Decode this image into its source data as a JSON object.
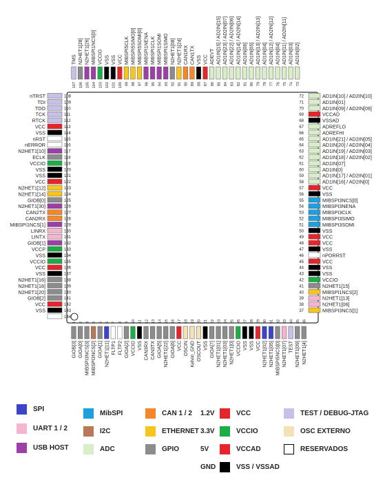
{
  "colors": {
    "spi": "#3c45c9",
    "uart": "#f5b5cf",
    "usb": "#9d3fa8",
    "mibspi": "#1ea0e0",
    "i2c": "#b87a56",
    "adc": "#d8edc8",
    "can": "#f5862a",
    "ethernet": "#f7c51e",
    "gpio": "#8c8c8c",
    "vcc": "#e8242b",
    "vccio": "#1bae47",
    "vccad": "#e8242b",
    "gnd": "#000000",
    "test": "#c8c0e8",
    "osc": "#f2e2b6",
    "reserved": "#ffffff"
  },
  "legend": [
    {
      "type": "spi",
      "label": "SPI"
    },
    {
      "type": "uart",
      "label": "UART 1 / 2"
    },
    {
      "type": "usb",
      "label": "USB HOST"
    },
    {
      "type": "mibspi",
      "label": "MibSPI"
    },
    {
      "type": "i2c",
      "label": "I2C"
    },
    {
      "type": "adc",
      "label": "ADC"
    },
    {
      "type": "can",
      "label": "CAN 1 / 2"
    },
    {
      "type": "ethernet",
      "label": "ETHERNET"
    },
    {
      "type": "gpio",
      "label": "GPIO"
    },
    {
      "type": "vcc",
      "label": "VCC",
      "voltage": "1.2V"
    },
    {
      "type": "vccio",
      "label": "VCCIO",
      "voltage": "3.3V"
    },
    {
      "type": "vccad",
      "label": "VCCAD",
      "voltage": "5V"
    },
    {
      "type": "gnd",
      "label": "VSS / VSSAD",
      "voltage": "GND"
    },
    {
      "type": "test",
      "label": "TEST / DEBUG-JTAG"
    },
    {
      "type": "osc",
      "label": "OSC EXTERNO"
    },
    {
      "type": "reserved",
      "label": "RESERVADOS"
    }
  ],
  "pins": {
    "left": [
      {
        "n": 108,
        "name": "nTRST",
        "type": "test"
      },
      {
        "n": 109,
        "name": "TDI",
        "type": "test"
      },
      {
        "n": 110,
        "name": "TDO",
        "type": "test"
      },
      {
        "n": 111,
        "name": "TCK",
        "type": "test"
      },
      {
        "n": 112,
        "name": "RTCK",
        "type": "test"
      },
      {
        "n": 113,
        "name": "VCC",
        "type": "vcc"
      },
      {
        "n": 114,
        "name": "VSS",
        "type": "gnd"
      },
      {
        "n": 115,
        "name": "nRST",
        "type": "reserved"
      },
      {
        "n": 116,
        "name": "nERROR",
        "type": "reserved"
      },
      {
        "n": 117,
        "name": "N2HET1[10]",
        "type": "usb"
      },
      {
        "n": 118,
        "name": "ECLK",
        "type": "gpio"
      },
      {
        "n": 119,
        "name": "VCCIO",
        "type": "vccio"
      },
      {
        "n": 120,
        "name": "VSS",
        "type": "gnd"
      },
      {
        "n": 121,
        "name": "VSS",
        "type": "gnd"
      },
      {
        "n": 122,
        "name": "VCC",
        "type": "vcc"
      },
      {
        "n": 123,
        "name": "N2HET1[12]",
        "type": "ethernet"
      },
      {
        "n": 124,
        "name": "N2HET1[14]",
        "type": "ethernet"
      },
      {
        "n": 125,
        "name": "GIOB[0]",
        "type": "gpio"
      },
      {
        "n": 126,
        "name": "N2HET1[30]",
        "type": "usb"
      },
      {
        "n": 127,
        "name": "CAN2TX",
        "type": "can"
      },
      {
        "n": 128,
        "name": "CAN2RX",
        "type": "can"
      },
      {
        "n": 129,
        "name": "MIBSPI1NCS[1]",
        "type": "usb"
      },
      {
        "n": 130,
        "name": "LINRX",
        "type": "uart"
      },
      {
        "n": 131,
        "name": "LINTX",
        "type": "uart"
      },
      {
        "n": 132,
        "name": "GIOB[1]",
        "type": "usb"
      },
      {
        "n": 133,
        "name": "VCCP",
        "type": "vccio"
      },
      {
        "n": 134,
        "name": "VSS",
        "type": "gnd"
      },
      {
        "n": 135,
        "name": "VCCIO",
        "type": "vccio"
      },
      {
        "n": 136,
        "name": "VCC",
        "type": "vcc"
      },
      {
        "n": 137,
        "name": "VSS",
        "type": "gnd"
      },
      {
        "n": 138,
        "name": "N2HET1[16]",
        "type": "gpio"
      },
      {
        "n": 139,
        "name": "N2HET1[18]",
        "type": "gpio"
      },
      {
        "n": 140,
        "name": "N2HET1[20]",
        "type": "gpio"
      },
      {
        "n": 141,
        "name": "GIOB[2]",
        "type": "gpio"
      },
      {
        "n": 142,
        "name": "VCC",
        "type": "vcc"
      },
      {
        "n": 143,
        "name": "VSS",
        "type": "gnd"
      },
      {
        "n": 144,
        "name": "",
        "type": "reserved"
      }
    ],
    "right": [
      {
        "n": 72,
        "name": "AD1IN[10] / AD2IN[10]",
        "type": "adc"
      },
      {
        "n": 71,
        "name": "AD1IN[01]",
        "type": "adc"
      },
      {
        "n": 70,
        "name": "AD1IN[09] / AD2IN[09]",
        "type": "adc"
      },
      {
        "n": 69,
        "name": "VCCAD",
        "type": "vccad"
      },
      {
        "n": 68,
        "name": "VSSAD",
        "type": "gnd"
      },
      {
        "n": 67,
        "name": "ADREFLO",
        "type": "adc"
      },
      {
        "n": 66,
        "name": "ADREFHI",
        "type": "adc"
      },
      {
        "n": 65,
        "name": "AD1IN[21] / AD2IN[05]",
        "type": "adc"
      },
      {
        "n": 64,
        "name": "AD1IN[20] / AD2IN[04]",
        "type": "adc"
      },
      {
        "n": 63,
        "name": "AD1IN[19] / AD2IN[03]",
        "type": "adc"
      },
      {
        "n": 62,
        "name": "AD1IN[18] / AD2IN[02]",
        "type": "adc"
      },
      {
        "n": 61,
        "name": "AD1IN[07]",
        "type": "adc"
      },
      {
        "n": 60,
        "name": "AD1IN[0]",
        "type": "adc"
      },
      {
        "n": 59,
        "name": "AD1IN[17] / AD2IN[01]",
        "type": "adc"
      },
      {
        "n": 58,
        "name": "AD1IN[16] / AD2IN[0]",
        "type": "adc"
      },
      {
        "n": 57,
        "name": "VCC",
        "type": "vcc"
      },
      {
        "n": 56,
        "name": "VSS",
        "type": "gnd"
      },
      {
        "n": 55,
        "name": "MIBSPI3NCS[0]",
        "type": "mibspi"
      },
      {
        "n": 54,
        "name": "MIBSPI3NENA",
        "type": "mibspi"
      },
      {
        "n": 53,
        "name": "MIBSPI3CLK",
        "type": "mibspi"
      },
      {
        "n": 52,
        "name": "MIBSPI3SIMO",
        "type": "mibspi"
      },
      {
        "n": 51,
        "name": "MIBSPI3SOMI",
        "type": "mibspi"
      },
      {
        "n": 50,
        "name": "VSS",
        "type": "gnd"
      },
      {
        "n": 49,
        "name": "VCC",
        "type": "vcc"
      },
      {
        "n": 48,
        "name": "VCC",
        "type": "vcc"
      },
      {
        "n": 47,
        "name": "VSS",
        "type": "gnd"
      },
      {
        "n": 46,
        "name": "nPORRST",
        "type": "reserved"
      },
      {
        "n": 45,
        "name": "VCC",
        "type": "vcc"
      },
      {
        "n": 44,
        "name": "VSS",
        "type": "gnd"
      },
      {
        "n": 43,
        "name": "VSS",
        "type": "gnd"
      },
      {
        "n": 42,
        "name": "VCCIO",
        "type": "vccio"
      },
      {
        "n": 41,
        "name": "N2HET1[15]",
        "type": "gpio"
      },
      {
        "n": 40,
        "name": "MIBSPI1NCS[2]",
        "type": "ethernet"
      },
      {
        "n": 39,
        "name": "N2HET1[13]",
        "type": "uart"
      },
      {
        "n": 38,
        "name": "N2HET1[06]",
        "type": "uart"
      },
      {
        "n": 37,
        "name": "MIBSPI3NCS[1]",
        "type": "ethernet"
      }
    ],
    "top": [
      {
        "n": 107,
        "name": "TMS",
        "type": "test"
      },
      {
        "n": 106,
        "name": "N2HET1[28]",
        "type": "gpio"
      },
      {
        "n": 105,
        "name": "N2HET1[26]",
        "type": "usb"
      },
      {
        "n": 104,
        "name": "MIBSPI1NCS[0]",
        "type": "usb"
      },
      {
        "n": 103,
        "name": "VCCIO",
        "type": "vccio"
      },
      {
        "n": 102,
        "name": "VSS",
        "type": "gnd"
      },
      {
        "n": 101,
        "name": "VSS",
        "type": "gnd"
      },
      {
        "n": 100,
        "name": "VCC",
        "type": "vcc"
      },
      {
        "n": 99,
        "name": "MIBSPI5CLK",
        "type": "ethernet"
      },
      {
        "n": 98,
        "name": "MIBSPI5SIMO[0]",
        "type": "ethernet"
      },
      {
        "n": 97,
        "name": "MIBSPI5SOMI[0]",
        "type": "ethernet"
      },
      {
        "n": 96,
        "name": "MIBSPI1NENA",
        "type": "usb"
      },
      {
        "n": 95,
        "name": "MIBSPI1CLK",
        "type": "usb"
      },
      {
        "n": 94,
        "name": "MIBSPI1SOMI",
        "type": "usb"
      },
      {
        "n": 93,
        "name": "MIBSPI1SIMO",
        "type": "usb"
      },
      {
        "n": 92,
        "name": "N2HET1[08]",
        "type": "gpio"
      },
      {
        "n": 91,
        "name": "N2HET1[24]",
        "type": "ethernet"
      },
      {
        "n": 90,
        "name": "CAN1RX",
        "type": "can"
      },
      {
        "n": 89,
        "name": "CAN1TX",
        "type": "can"
      },
      {
        "n": 88,
        "name": "VSS",
        "type": "gnd"
      },
      {
        "n": 87,
        "name": "VCC",
        "type": "vcc"
      },
      {
        "n": 86,
        "name": "ADEVT",
        "type": "adc"
      },
      {
        "n": 85,
        "name": "AD1IN[15] / AD2IN[15]",
        "type": "adc"
      },
      {
        "n": 84,
        "name": "AD1IN[23] / AD2IN[07]",
        "type": "adc"
      },
      {
        "n": 83,
        "name": "AD1IN[22] / AD2IN[06]",
        "type": "adc"
      },
      {
        "n": 82,
        "name": "AD1IN[14] / AD2IN[14]",
        "type": "adc"
      },
      {
        "n": 81,
        "name": "AD1IN[06]",
        "type": "adc"
      },
      {
        "n": 80,
        "name": "AD1IN[05]",
        "type": "adc"
      },
      {
        "n": 79,
        "name": "AD1IN[13] / AD2IN[13]",
        "type": "adc"
      },
      {
        "n": 78,
        "name": "AD1IN[04]",
        "type": "adc"
      },
      {
        "n": 77,
        "name": "AD1IN[12] / AD2IN[12]",
        "type": "adc"
      },
      {
        "n": 76,
        "name": "AD1IN[04]",
        "type": "adc"
      },
      {
        "n": 75,
        "name": "AD1IN[11] / AD2IN[11]",
        "type": "adc"
      },
      {
        "n": 74,
        "name": "AD1IN[03]",
        "type": "adc"
      },
      {
        "n": 73,
        "name": "AD1IN[02]",
        "type": "adc"
      }
    ],
    "bottom": [
      {
        "n": 1,
        "name": "GIOB[3]",
        "type": "gpio"
      },
      {
        "n": 2,
        "name": "GIOA[0]",
        "type": "gpio"
      },
      {
        "n": 3,
        "name": "MIBSPI3NCS[3]",
        "type": "gpio"
      },
      {
        "n": 4,
        "name": "MIBSPI3NCS[2]",
        "type": "i2c"
      },
      {
        "n": 5,
        "name": "GIOA[1]",
        "type": "gpio"
      },
      {
        "n": 6,
        "name": "N2HET1[11]",
        "type": "spi"
      },
      {
        "n": 7,
        "name": "FLTP1",
        "type": "reserved"
      },
      {
        "n": 8,
        "name": "FLTP2",
        "type": "reserved"
      },
      {
        "n": 9,
        "name": "GIOA[2]",
        "type": "gpio"
      },
      {
        "n": 10,
        "name": "VCCIO",
        "type": "vccio"
      },
      {
        "n": 11,
        "name": "VSS",
        "type": "gnd"
      },
      {
        "n": 12,
        "name": "CAN3RX",
        "type": "gpio"
      },
      {
        "n": 13,
        "name": "CAN3TX",
        "type": "gpio"
      },
      {
        "n": 14,
        "name": "GIOA[5]",
        "type": "gpio"
      },
      {
        "n": 15,
        "name": "N2HET1[22]",
        "type": "gpio"
      },
      {
        "n": 16,
        "name": "GIOA[6]",
        "type": "gpio"
      },
      {
        "n": 17,
        "name": "VCC",
        "type": "vcc"
      },
      {
        "n": 18,
        "name": "OSCIN",
        "type": "osc"
      },
      {
        "n": 19,
        "name": "Kelvin_GND",
        "type": "osc"
      },
      {
        "n": 20,
        "name": "OSCOUT",
        "type": "osc"
      },
      {
        "n": 21,
        "name": "VSS",
        "type": "gnd"
      },
      {
        "n": 22,
        "name": "GIOA[7]",
        "type": "gpio"
      },
      {
        "n": 23,
        "name": "N2HET1[01]",
        "type": "gpio"
      },
      {
        "n": 24,
        "name": "N2HET1[03]",
        "type": "gpio"
      },
      {
        "n": 25,
        "name": "N2HET1[0]",
        "type": "gpio"
      },
      {
        "n": 26,
        "name": "VCCIO",
        "type": "vccio"
      },
      {
        "n": 27,
        "name": "VSS",
        "type": "gnd"
      },
      {
        "n": 28,
        "name": "VSS",
        "type": "gnd"
      },
      {
        "n": 29,
        "name": "VCC",
        "type": "vcc"
      },
      {
        "n": 30,
        "name": "N2HET1[02]",
        "type": "spi"
      },
      {
        "n": 31,
        "name": "N2HET1[05]",
        "type": "spi"
      },
      {
        "n": 32,
        "name": "MIBSPI5NCS[0]",
        "type": "gpio"
      },
      {
        "n": 33,
        "name": "N2HET1[07]",
        "type": "uart"
      },
      {
        "n": 34,
        "name": "TEST",
        "type": "test"
      },
      {
        "n": 35,
        "name": "N2HET1[09]",
        "type": "gpio"
      },
      {
        "n": 36,
        "name": "N2HET1[4]",
        "type": "gpio"
      }
    ]
  }
}
